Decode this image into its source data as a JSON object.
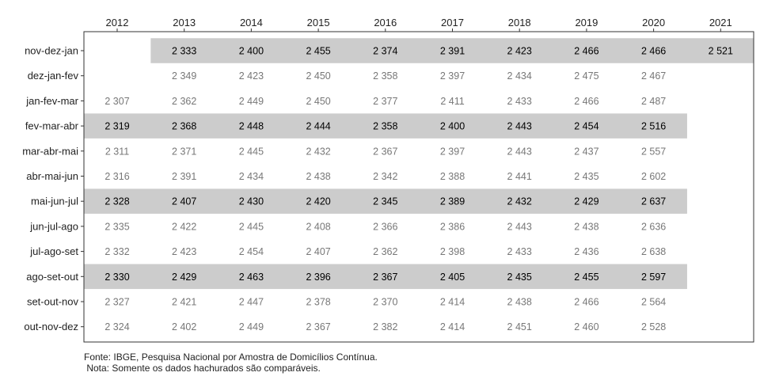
{
  "chart_data": {
    "type": "table",
    "title": "",
    "columns": [
      "2012",
      "2013",
      "2014",
      "2015",
      "2016",
      "2017",
      "2018",
      "2019",
      "2020",
      "2021"
    ],
    "rows": [
      {
        "label": "nov-dez-jan",
        "highlighted": true,
        "values": [
          null,
          "2 333",
          "2 400",
          "2 455",
          "2 374",
          "2 391",
          "2 423",
          "2 466",
          "2 466",
          "2 521"
        ]
      },
      {
        "label": "dez-jan-fev",
        "highlighted": false,
        "values": [
          null,
          "2 349",
          "2 423",
          "2 450",
          "2 358",
          "2 397",
          "2 434",
          "2 475",
          "2 467",
          null
        ]
      },
      {
        "label": "jan-fev-mar",
        "highlighted": false,
        "values": [
          "2 307",
          "2 362",
          "2 449",
          "2 450",
          "2 377",
          "2 411",
          "2 433",
          "2 466",
          "2 487",
          null
        ]
      },
      {
        "label": "fev-mar-abr",
        "highlighted": true,
        "values": [
          "2 319",
          "2 368",
          "2 448",
          "2 444",
          "2 358",
          "2 400",
          "2 443",
          "2 454",
          "2 516",
          null
        ]
      },
      {
        "label": "mar-abr-mai",
        "highlighted": false,
        "values": [
          "2 311",
          "2 371",
          "2 445",
          "2 432",
          "2 367",
          "2 397",
          "2 443",
          "2 437",
          "2 557",
          null
        ]
      },
      {
        "label": "abr-mai-jun",
        "highlighted": false,
        "values": [
          "2 316",
          "2 391",
          "2 434",
          "2 438",
          "2 342",
          "2 388",
          "2 441",
          "2 435",
          "2 602",
          null
        ]
      },
      {
        "label": "mai-jun-jul",
        "highlighted": true,
        "values": [
          "2 328",
          "2 407",
          "2 430",
          "2 420",
          "2 345",
          "2 389",
          "2 432",
          "2 429",
          "2 637",
          null
        ]
      },
      {
        "label": "jun-jul-ago",
        "highlighted": false,
        "values": [
          "2 335",
          "2 422",
          "2 445",
          "2 408",
          "2 366",
          "2 386",
          "2 443",
          "2 438",
          "2 636",
          null
        ]
      },
      {
        "label": "jul-ago-set",
        "highlighted": false,
        "values": [
          "2 332",
          "2 423",
          "2 454",
          "2 407",
          "2 362",
          "2 398",
          "2 433",
          "2 436",
          "2 638",
          null
        ]
      },
      {
        "label": "ago-set-out",
        "highlighted": true,
        "values": [
          "2 330",
          "2 429",
          "2 463",
          "2 396",
          "2 367",
          "2 405",
          "2 435",
          "2 455",
          "2 597",
          null
        ]
      },
      {
        "label": "set-out-nov",
        "highlighted": false,
        "values": [
          "2 327",
          "2 421",
          "2 447",
          "2 378",
          "2 370",
          "2 414",
          "2 438",
          "2 466",
          "2 564",
          null
        ]
      },
      {
        "label": "out-nov-dez",
        "highlighted": false,
        "values": [
          "2 324",
          "2 402",
          "2 449",
          "2 367",
          "2 382",
          "2 414",
          "2 451",
          "2 460",
          "2 528",
          null
        ]
      }
    ],
    "highlight_color": "#cccccc",
    "highlight_text_color": "#000000",
    "normal_text_color": "#777777"
  },
  "notes": {
    "source": "Fonte: IBGE, Pesquisa Nacional por Amostra de Domicílios Contínua.",
    "note": " Nota: Somente os dados hachurados são comparáveis."
  }
}
